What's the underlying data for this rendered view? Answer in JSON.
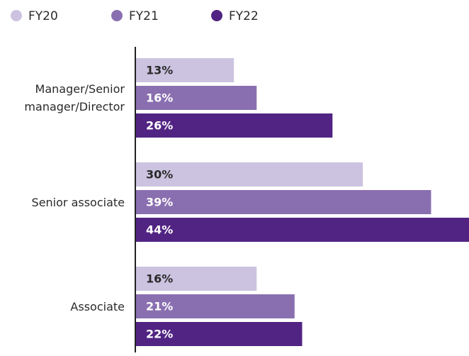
{
  "chart_data": {
    "type": "bar",
    "orientation": "horizontal",
    "categories": [
      "Manager/Senior manager/Director",
      "Senior associate",
      "Associate"
    ],
    "series": [
      {
        "name": "FY20",
        "color": "#cbc3e0",
        "values": [
          13,
          30,
          16
        ],
        "value_labels": [
          "13%",
          "30%",
          "16%"
        ]
      },
      {
        "name": "FY21",
        "color": "#8a6fb0",
        "values": [
          16,
          39,
          21
        ],
        "value_labels": [
          "16%",
          "39%",
          "21%"
        ]
      },
      {
        "name": "FY22",
        "color": "#512483",
        "values": [
          26,
          44,
          22
        ],
        "value_labels": [
          "26%",
          "44%",
          "22%"
        ]
      }
    ]
  }
}
